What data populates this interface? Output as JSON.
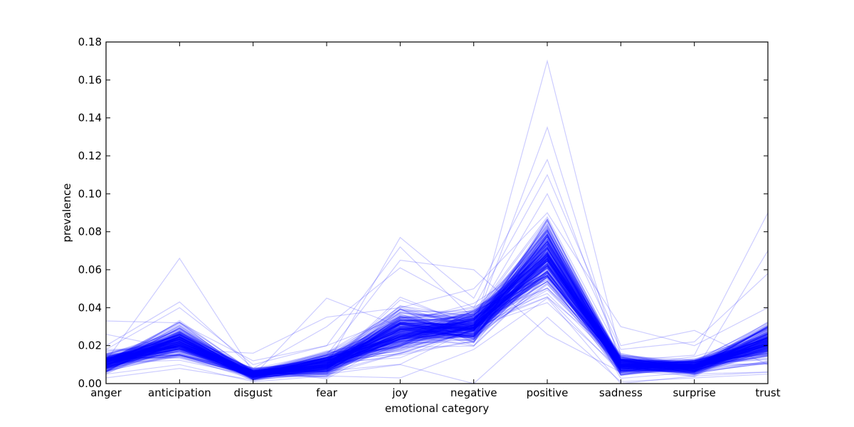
{
  "chart_data": {
    "type": "line",
    "title": "",
    "xlabel": "emotional category",
    "ylabel": "prevalence",
    "categories": [
      "anger",
      "anticipation",
      "disgust",
      "fear",
      "joy",
      "negative",
      "positive",
      "sadness",
      "surprise",
      "trust"
    ],
    "ylim": [
      0,
      0.18
    ],
    "yticks": [
      "0.00",
      "0.02",
      "0.04",
      "0.06",
      "0.08",
      "0.10",
      "0.12",
      "0.14",
      "0.16",
      "0.18"
    ],
    "grid": false,
    "legend": "none",
    "line_color": "#0000ff",
    "line_alpha": 0.2,
    "series_count": 300,
    "series": [
      {
        "values": [
          0.012,
          0.066,
          0.006,
          0.012,
          0.025,
          0.03,
          0.075,
          0.008,
          0.01,
          0.02
        ]
      },
      {
        "values": [
          0.033,
          0.032,
          0.012,
          0.02,
          0.035,
          0.028,
          0.17,
          0.015,
          0.01,
          0.03
        ]
      },
      {
        "values": [
          0.01,
          0.02,
          0.004,
          0.045,
          0.03,
          0.03,
          0.135,
          0.01,
          0.012,
          0.015
        ]
      },
      {
        "values": [
          0.008,
          0.015,
          0.004,
          0.01,
          0.077,
          0.045,
          0.118,
          0.012,
          0.015,
          0.09
        ]
      },
      {
        "values": [
          0.015,
          0.025,
          0.006,
          0.015,
          0.065,
          0.06,
          0.026,
          0.006,
          0.006,
          0.07
        ]
      },
      {
        "values": [
          0.02,
          0.043,
          0.008,
          0.03,
          0.061,
          0.04,
          0.11,
          0.02,
          0.028,
          0.01
        ]
      },
      {
        "values": [
          0.003,
          0.008,
          0.002,
          0.005,
          0.01,
          0.0,
          0.035,
          0.001,
          0.003,
          0.005
        ]
      },
      {
        "values": [
          0.026,
          0.018,
          0.016,
          0.035,
          0.04,
          0.05,
          0.09,
          0.03,
          0.02,
          0.04
        ]
      },
      {
        "values": [
          0.005,
          0.01,
          0.001,
          0.004,
          0.003,
          0.018,
          0.045,
          0.0,
          0.004,
          0.006
        ]
      },
      {
        "values": [
          0.018,
          0.04,
          0.01,
          0.02,
          0.072,
          0.034,
          0.1,
          0.018,
          0.022,
          0.058
        ]
      }
    ]
  }
}
